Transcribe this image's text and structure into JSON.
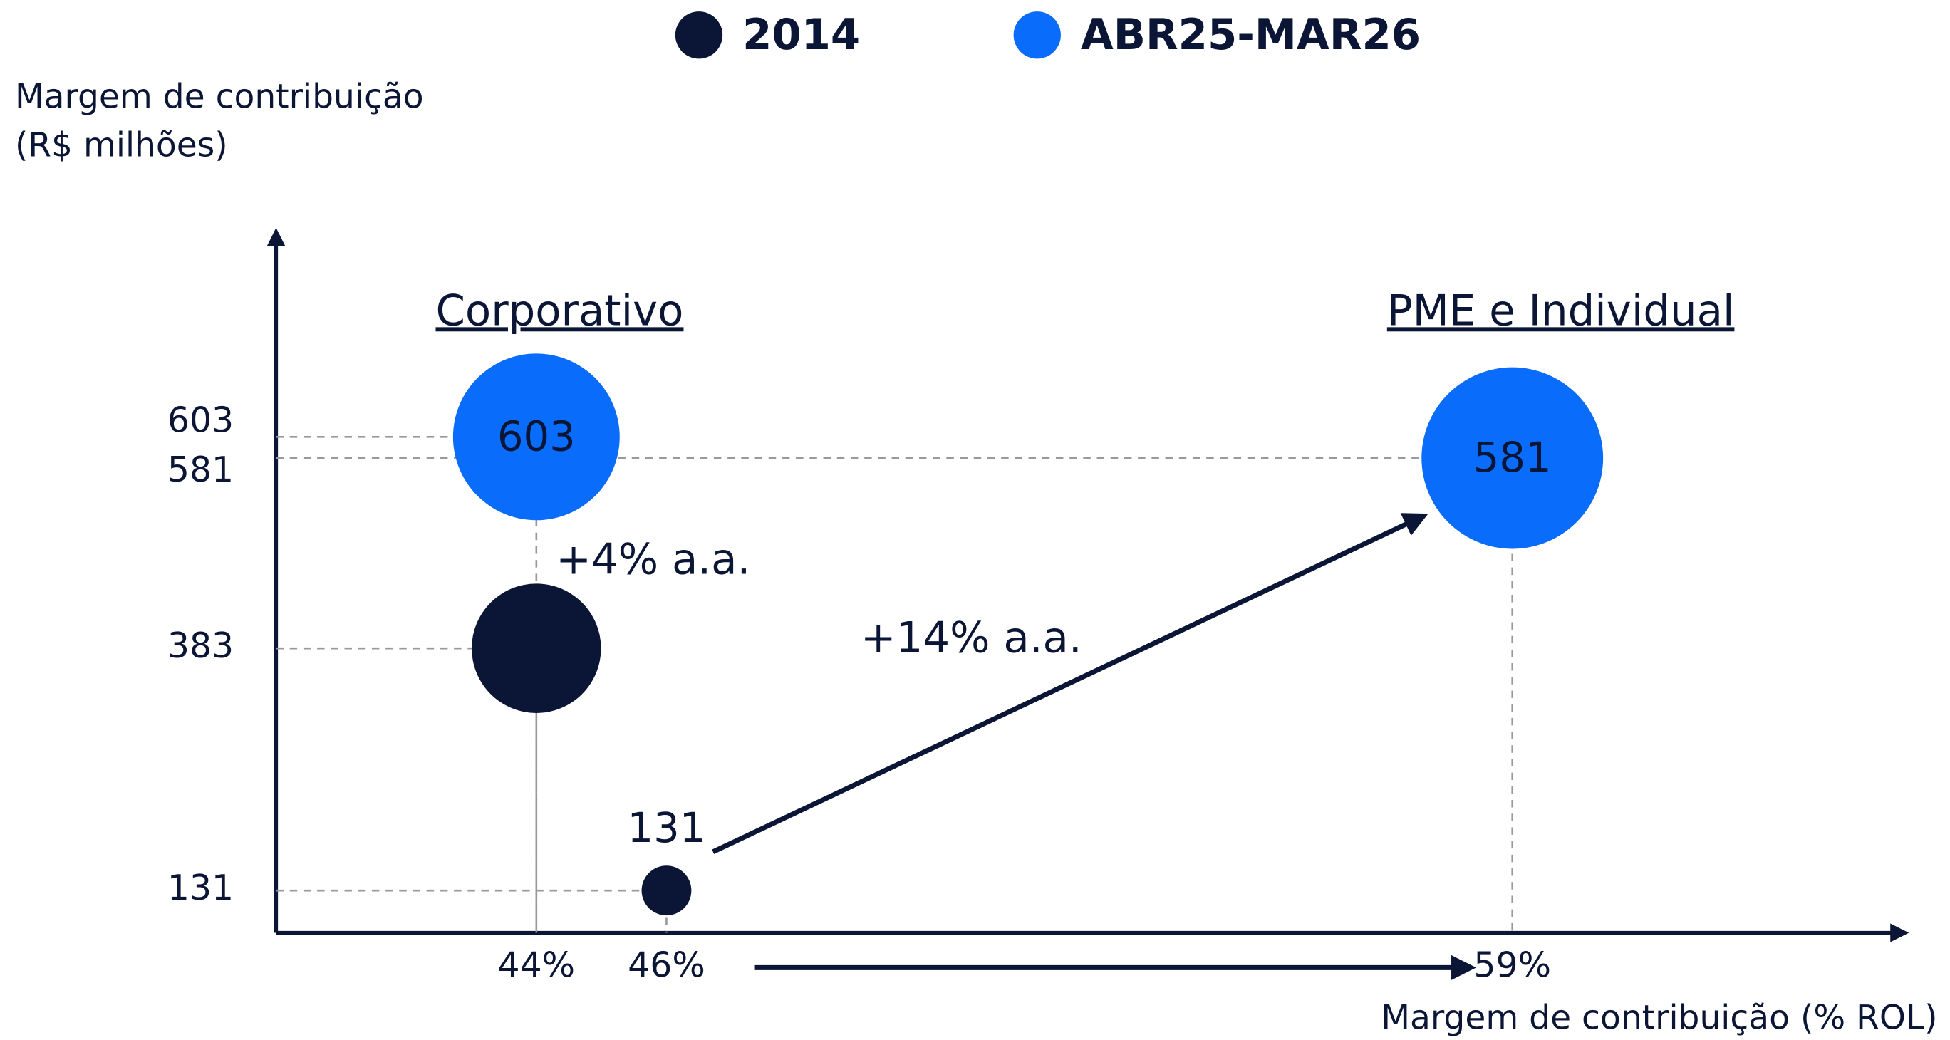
{
  "chart_data": {
    "type": "bubble",
    "y_label": [
      "Margem de contribuição",
      "(R$ milhões)"
    ],
    "x_label": "Margem de contribuição (% ROL)",
    "groups": [
      "Corporativo",
      "PME e Individual"
    ],
    "annotations": [
      "+4% a.a.",
      "+14% a.a."
    ],
    "series": [
      {
        "name": "2014",
        "color": "#0b1535",
        "x": [
          44,
          46
        ],
        "values": [
          383,
          131
        ]
      },
      {
        "name": "ABR25-MAR26",
        "color": "#0a6cfa",
        "x": [
          44,
          59
        ],
        "values": [
          603,
          581
        ]
      }
    ],
    "xlim": [
      40,
      65
    ],
    "xticks": [
      {
        "value": 44,
        "label": "44%"
      },
      {
        "value": 46,
        "label": "46%"
      },
      {
        "value": 59,
        "label": "59%"
      }
    ],
    "ylim": [
      87,
      818
    ],
    "yticks": [
      131,
      383,
      581,
      603
    ],
    "legend": "top"
  }
}
